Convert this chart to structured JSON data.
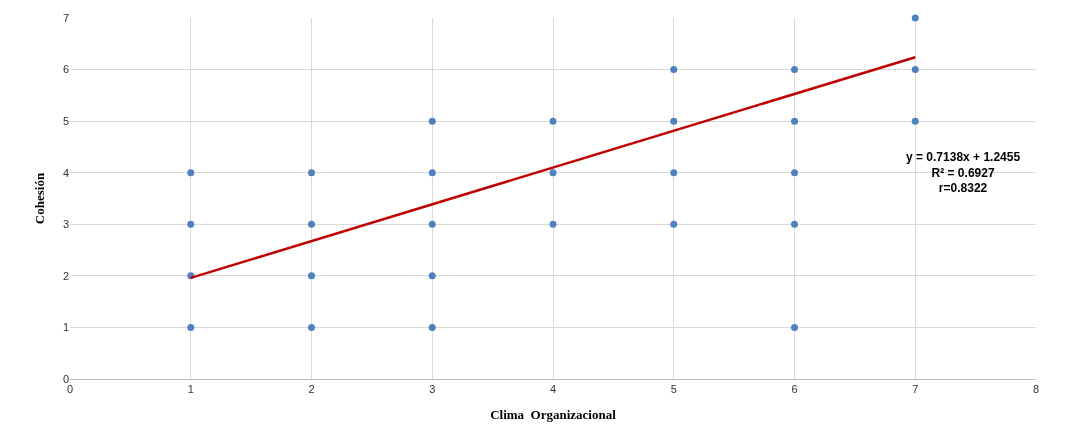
{
  "chart_data": {
    "type": "scatter",
    "xlabel": "Clima  Organizacional",
    "ylabel": "Cohesión",
    "series": [
      {
        "color": "#4f81bd",
        "x": [
          1,
          1,
          1,
          1,
          2,
          2,
          2,
          2,
          3,
          3,
          3,
          3,
          3,
          4,
          4,
          4,
          5,
          5,
          5,
          5,
          6,
          6,
          6,
          6,
          6,
          7,
          7,
          7
        ],
        "values": [
          1,
          2,
          3,
          4,
          1,
          2,
          3,
          4,
          1,
          2,
          3,
          4,
          5,
          3,
          4,
          5,
          3,
          4,
          5,
          6,
          1,
          3,
          4,
          5,
          6,
          5,
          6,
          7
        ],
        "marker": "circle"
      },
      {
        "type": "line",
        "color": "#c00000",
        "x": [
          1,
          7
        ],
        "values": [
          1.96,
          6.24
        ],
        "line_style": "solid",
        "marker": "none"
      }
    ],
    "annotations": [
      "y = 0.7138x + 1.2455",
      "R² = 0.6927",
      "r=0.8322"
    ],
    "xlim": [
      0,
      8
    ],
    "ylim": [
      0,
      7
    ],
    "xticks": [
      0,
      1,
      2,
      3,
      4,
      5,
      6,
      7,
      8
    ],
    "yticks": [
      0,
      1,
      2,
      3,
      4,
      5,
      6,
      7
    ],
    "grid": true
  }
}
